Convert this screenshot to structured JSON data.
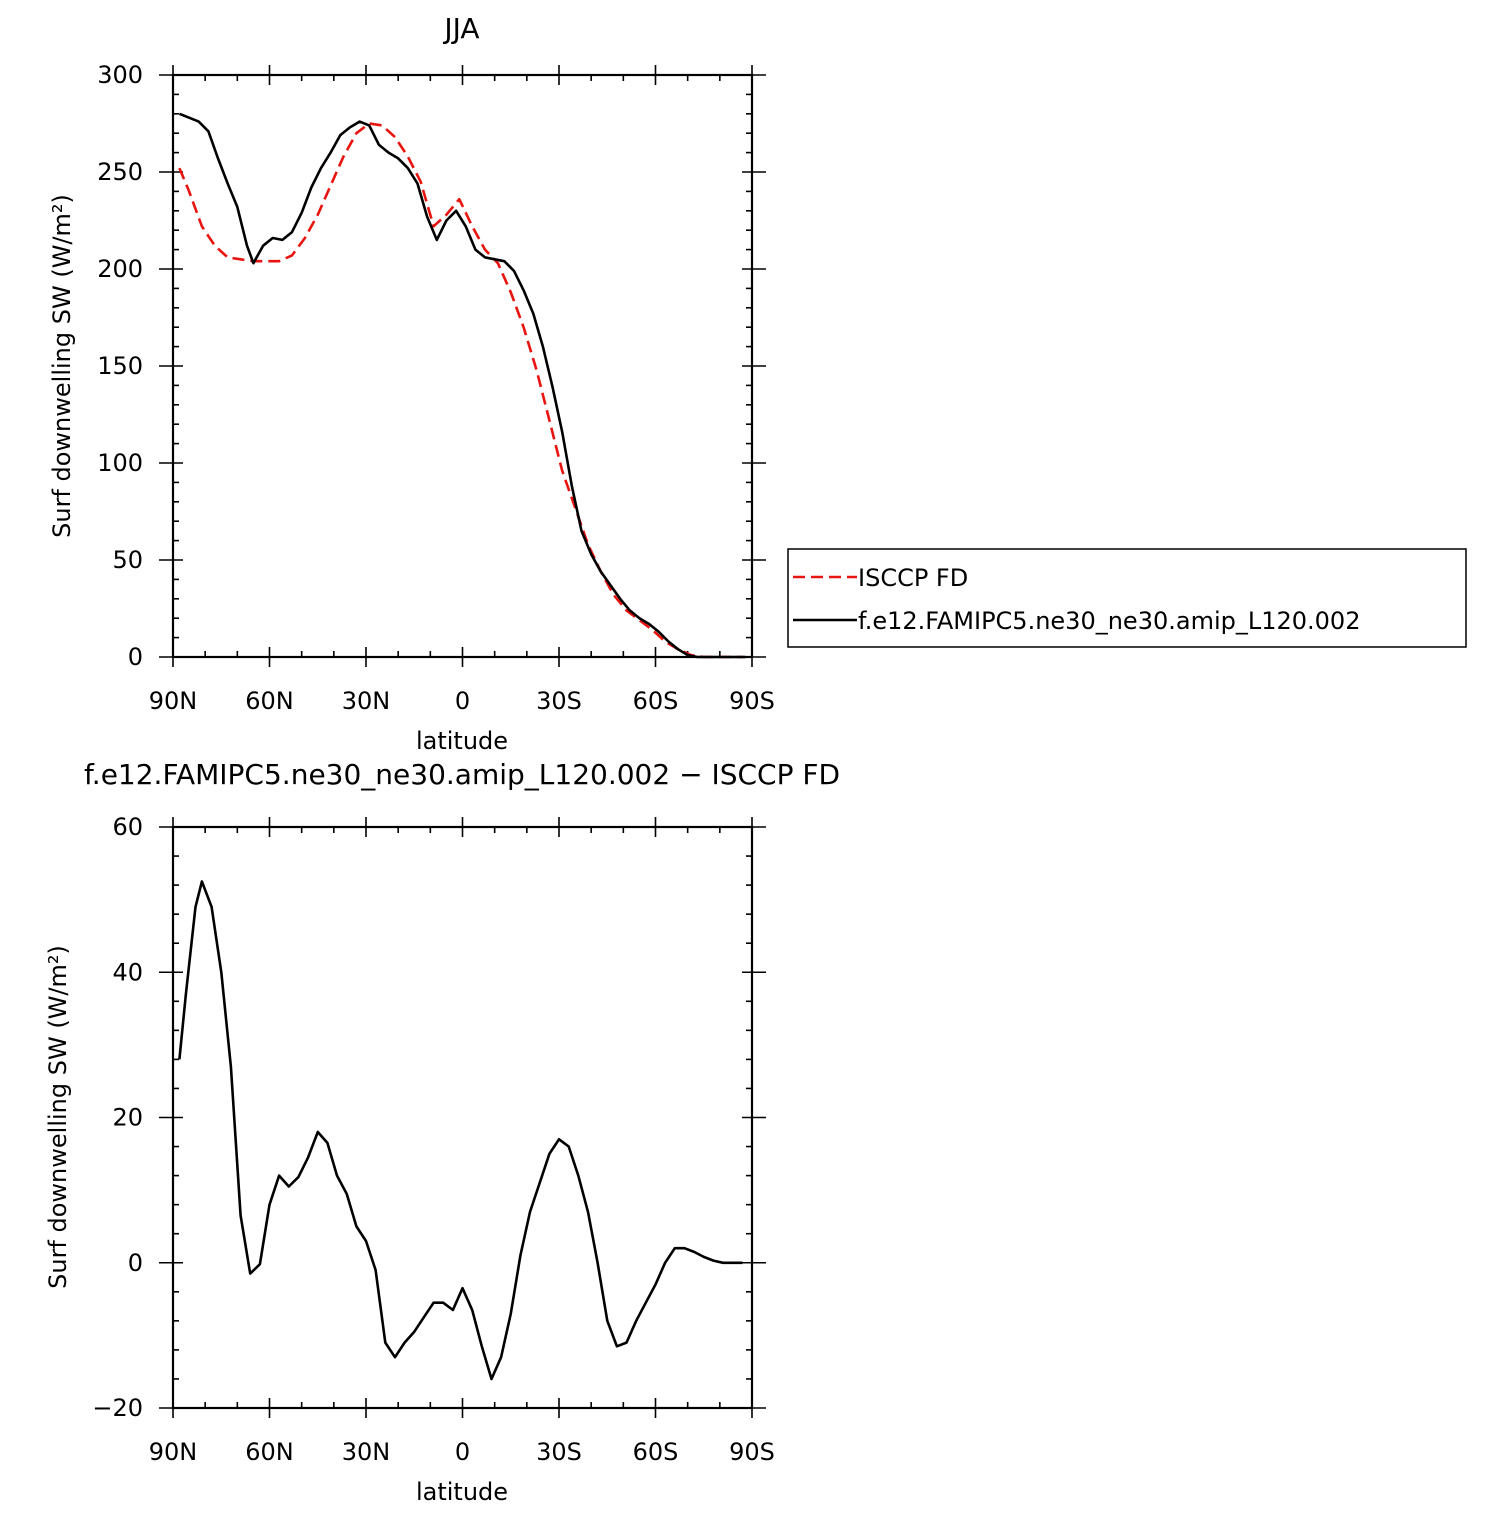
{
  "chart_data": [
    {
      "type": "line",
      "title": "JJA",
      "xlabel": "latitude",
      "ylabel": "Surf downwelling SW (W/m²)",
      "xlim": [
        90,
        -90
      ],
      "ylim": [
        0,
        300
      ],
      "xticks": [
        {
          "value": 90,
          "label": "90N"
        },
        {
          "value": 60,
          "label": "60N"
        },
        {
          "value": 30,
          "label": "30N"
        },
        {
          "value": 0,
          "label": "0"
        },
        {
          "value": -30,
          "label": "30S"
        },
        {
          "value": -60,
          "label": "60S"
        },
        {
          "value": -90,
          "label": "90S"
        }
      ],
      "yticks": [
        {
          "value": 0,
          "label": "0"
        },
        {
          "value": 50,
          "label": "50"
        },
        {
          "value": 100,
          "label": "100"
        },
        {
          "value": 150,
          "label": "150"
        },
        {
          "value": 200,
          "label": "200"
        },
        {
          "value": 250,
          "label": "250"
        },
        {
          "value": 300,
          "label": "300"
        }
      ],
      "legend_position": "right",
      "series": [
        {
          "name": "ISCCP FD",
          "color": "#e8140f",
          "style": "dashed",
          "x": [
            88,
            85,
            81,
            77,
            73,
            69,
            65,
            61,
            57,
            53,
            49,
            45,
            41,
            37,
            33,
            29,
            25,
            21,
            17,
            13,
            9,
            5,
            1,
            -3,
            -7,
            -11,
            -15,
            -19,
            -23,
            -27,
            -31,
            -35,
            -39,
            -43,
            -47,
            -51,
            -55,
            -59,
            -63,
            -67,
            -71,
            -75,
            -79,
            -83,
            -87
          ],
          "values": [
            252,
            240,
            222,
            212,
            206,
            205,
            204,
            204,
            204,
            207,
            216,
            228,
            243,
            258,
            270,
            275,
            274,
            268,
            258,
            245,
            222,
            228,
            236,
            222,
            210,
            203,
            188,
            170,
            148,
            122,
            96,
            77,
            58,
            44,
            32,
            24,
            19,
            14,
            8,
            4,
            1,
            0,
            0,
            0,
            0
          ]
        },
        {
          "name": "f.e12.FAMIPC5.ne30_ne30.amip_L120.002",
          "color": "#000000",
          "style": "solid",
          "x": [
            88,
            85,
            82,
            79,
            76,
            73,
            70,
            67,
            65,
            62,
            59,
            56,
            53,
            50,
            47,
            44,
            41,
            38,
            35,
            32,
            29,
            26,
            23,
            20,
            17,
            14,
            11,
            8,
            5,
            2,
            -1,
            -4,
            -7,
            -10,
            -13,
            -16,
            -19,
            -22,
            -25,
            -28,
            -31,
            -34,
            -37,
            -40,
            -43,
            -46,
            -49,
            -52,
            -55,
            -58,
            -61,
            -64,
            -67,
            -70,
            -73,
            -76,
            -79,
            -82,
            -85,
            -88
          ],
          "values": [
            280,
            278,
            276,
            271,
            257,
            244,
            232,
            212,
            203,
            212,
            216,
            215,
            219,
            229,
            242,
            252,
            260,
            269,
            273,
            276,
            274,
            264,
            260,
            257,
            252,
            244,
            227,
            215,
            225,
            230,
            222,
            210,
            206,
            205,
            204,
            199,
            189,
            177,
            160,
            139,
            116,
            88,
            65,
            53,
            44,
            37,
            30,
            24,
            20,
            17,
            13,
            8,
            4,
            1,
            0,
            0,
            0,
            0,
            0,
            0
          ]
        }
      ]
    },
    {
      "type": "line",
      "title": "f.e12.FAMIPC5.ne30_ne30.amip_L120.002 − ISCCP FD",
      "xlabel": "latitude",
      "ylabel": "Surf downwelling SW (W/m²)",
      "xlim": [
        90,
        -90
      ],
      "ylim": [
        -20,
        60
      ],
      "xticks": [
        {
          "value": 90,
          "label": "90N"
        },
        {
          "value": 60,
          "label": "60N"
        },
        {
          "value": 30,
          "label": "30N"
        },
        {
          "value": 0,
          "label": "0"
        },
        {
          "value": -30,
          "label": "30S"
        },
        {
          "value": -60,
          "label": "60S"
        },
        {
          "value": -90,
          "label": "90S"
        }
      ],
      "yticks": [
        {
          "value": -20,
          "label": "−20"
        },
        {
          "value": 0,
          "label": "0"
        },
        {
          "value": 20,
          "label": "20"
        },
        {
          "value": 40,
          "label": "40"
        },
        {
          "value": 60,
          "label": "60"
        }
      ],
      "series": [
        {
          "color": "#000000",
          "style": "solid",
          "x": [
            88,
            86,
            83,
            81,
            78,
            75,
            72,
            69,
            66,
            63,
            60,
            57,
            54,
            51,
            48,
            45,
            42,
            39,
            36,
            33,
            30,
            27,
            24,
            21,
            18,
            15,
            12,
            9,
            6,
            3,
            0,
            -3,
            -6,
            -9,
            -12,
            -15,
            -18,
            -21,
            -24,
            -27,
            -30,
            -33,
            -36,
            -39,
            -42,
            -45,
            -48,
            -51,
            -54,
            -57,
            -60,
            -63,
            -66,
            -69,
            -72,
            -75,
            -78,
            -81,
            -84,
            -87
          ],
          "values": [
            28,
            37,
            49,
            52.5,
            49,
            40,
            27,
            6.5,
            -1.5,
            -0.2,
            8,
            12,
            10.5,
            11.8,
            14.5,
            18,
            16.5,
            12,
            9.5,
            5,
            3,
            -1,
            -11,
            -13,
            -11,
            -9.5,
            -7.5,
            -5.5,
            -5.5,
            -6.5,
            -3.5,
            -6.5,
            -11.5,
            -16,
            -13,
            -7,
            1,
            7,
            11,
            15,
            17,
            16,
            12,
            7,
            0,
            -8,
            -11.5,
            -11,
            -8,
            -5.5,
            -3,
            0,
            2,
            2,
            1.5,
            0.8,
            0.3,
            0,
            0,
            0
          ]
        }
      ]
    }
  ]
}
